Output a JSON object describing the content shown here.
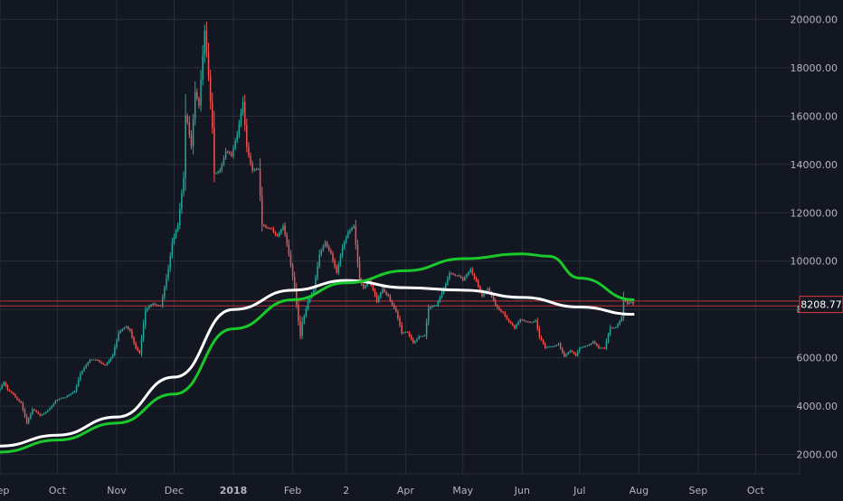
{
  "colors": {
    "background": "#131722",
    "grid": "#2a2e39",
    "axis_text": "#b2b5be",
    "up_candle": "#26a69a",
    "down_candle": "#ef5350",
    "ma_white": "#ffffff",
    "ma_green": "#19c82a",
    "price_line": "#e0393e",
    "price_tag_bg": "#131722",
    "price_tag_border": "#e0393e"
  },
  "price_tag": "8208.77",
  "chart_data": {
    "type": "candlestick",
    "title": "",
    "xlabel": "",
    "ylabel": "",
    "x_range": [
      "2017-09-01",
      "2018-10-24"
    ],
    "ylim": [
      1200,
      20800
    ],
    "grid": true,
    "y_ticks": [
      2000,
      4000,
      6000,
      8000,
      10000,
      12000,
      14000,
      16000,
      18000,
      20000
    ],
    "y_tick_labels": [
      "2000.00",
      "4000.00",
      "6000.00",
      "8000.00",
      "10000.00",
      "12000.00",
      "14000.00",
      "16000.00",
      "18000.00",
      "20000.00"
    ],
    "x_ticks": [
      {
        "date": "2017-09-01",
        "label": "Sep"
      },
      {
        "date": "2017-10-01",
        "label": "Oct"
      },
      {
        "date": "2017-11-01",
        "label": "Nov"
      },
      {
        "date": "2017-12-01",
        "label": "Dec"
      },
      {
        "date": "2018-01-01",
        "label": "2018"
      },
      {
        "date": "2018-02-01",
        "label": "Feb"
      },
      {
        "date": "2018-03-01",
        "label": "2"
      },
      {
        "date": "2018-04-01",
        "label": "Apr"
      },
      {
        "date": "2018-05-01",
        "label": "May"
      },
      {
        "date": "2018-06-01",
        "label": "Jun"
      },
      {
        "date": "2018-07-01",
        "label": "Jul"
      },
      {
        "date": "2018-08-01",
        "label": "Aug"
      },
      {
        "date": "2018-09-01",
        "label": "Sep"
      },
      {
        "date": "2018-10-01",
        "label": "Oct"
      }
    ],
    "horizontal_lines": [
      8150,
      8350
    ],
    "close_keypoints": [
      [
        "2017-09-01",
        4700
      ],
      [
        "2017-09-03",
        4900
      ],
      [
        "2017-09-05",
        4600
      ],
      [
        "2017-09-08",
        4500
      ],
      [
        "2017-09-12",
        4200
      ],
      [
        "2017-09-14",
        3600
      ],
      [
        "2017-09-15",
        3300
      ],
      [
        "2017-09-18",
        3800
      ],
      [
        "2017-09-22",
        3600
      ],
      [
        "2017-09-26",
        3900
      ],
      [
        "2017-09-30",
        4200
      ],
      [
        "2017-10-05",
        4300
      ],
      [
        "2017-10-10",
        4700
      ],
      [
        "2017-10-13",
        5400
      ],
      [
        "2017-10-18",
        5800
      ],
      [
        "2017-10-22",
        5900
      ],
      [
        "2017-10-26",
        5800
      ],
      [
        "2017-10-30",
        6100
      ],
      [
        "2017-11-02",
        6900
      ],
      [
        "2017-11-06",
        7300
      ],
      [
        "2017-11-08",
        7200
      ],
      [
        "2017-11-11",
        6500
      ],
      [
        "2017-11-13",
        6200
      ],
      [
        "2017-11-16",
        7800
      ],
      [
        "2017-11-20",
        8200
      ],
      [
        "2017-11-24",
        8300
      ],
      [
        "2017-11-28",
        9700
      ],
      [
        "2017-11-30",
        10600
      ],
      [
        "2017-12-03",
        11300
      ],
      [
        "2017-12-06",
        13500
      ],
      [
        "2017-12-07",
        16200
      ],
      [
        "2017-12-08",
        16000
      ],
      [
        "2017-12-10",
        15000
      ],
      [
        "2017-12-12",
        17100
      ],
      [
        "2017-12-14",
        16300
      ],
      [
        "2017-12-17",
        19200
      ],
      [
        "2017-12-19",
        17500
      ],
      [
        "2017-12-21",
        15600
      ],
      [
        "2017-12-22",
        13800
      ],
      [
        "2017-12-25",
        14000
      ],
      [
        "2017-12-28",
        14500
      ],
      [
        "2017-12-31",
        14100
      ],
      [
        "2018-01-03",
        15100
      ],
      [
        "2018-01-06",
        16800
      ],
      [
        "2018-01-08",
        15000
      ],
      [
        "2018-01-11",
        13800
      ],
      [
        "2018-01-14",
        13600
      ],
      [
        "2018-01-16",
        11300
      ],
      [
        "2018-01-18",
        11300
      ],
      [
        "2018-01-21",
        11500
      ],
      [
        "2018-01-24",
        11200
      ],
      [
        "2018-01-27",
        11400
      ],
      [
        "2018-01-30",
        10100
      ],
      [
        "2018-02-02",
        8800
      ],
      [
        "2018-02-05",
        7000
      ],
      [
        "2018-02-06",
        7600
      ],
      [
        "2018-02-09",
        8400
      ],
      [
        "2018-02-12",
        8700
      ],
      [
        "2018-02-15",
        10100
      ],
      [
        "2018-02-18",
        10800
      ],
      [
        "2018-02-21",
        10500
      ],
      [
        "2018-02-24",
        9600
      ],
      [
        "2018-02-27",
        10400
      ],
      [
        "2018-03-02",
        11000
      ],
      [
        "2018-03-05",
        11500
      ],
      [
        "2018-03-08",
        9400
      ],
      [
        "2018-03-10",
        9000
      ],
      [
        "2018-03-13",
        9100
      ],
      [
        "2018-03-17",
        8200
      ],
      [
        "2018-03-20",
        8900
      ],
      [
        "2018-03-23",
        8700
      ],
      [
        "2018-03-27",
        7900
      ],
      [
        "2018-03-30",
        6900
      ],
      [
        "2018-04-02",
        7000
      ],
      [
        "2018-04-05",
        6700
      ],
      [
        "2018-04-08",
        7000
      ],
      [
        "2018-04-11",
        6900
      ],
      [
        "2018-04-13",
        7900
      ],
      [
        "2018-04-17",
        8100
      ],
      [
        "2018-04-20",
        8800
      ],
      [
        "2018-04-24",
        9600
      ],
      [
        "2018-04-27",
        9300
      ],
      [
        "2018-05-01",
        9100
      ],
      [
        "2018-05-05",
        9800
      ],
      [
        "2018-05-08",
        9300
      ],
      [
        "2018-05-11",
        8500
      ],
      [
        "2018-05-14",
        8700
      ],
      [
        "2018-05-18",
        8200
      ],
      [
        "2018-05-22",
        8000
      ],
      [
        "2018-05-25",
        7500
      ],
      [
        "2018-05-28",
        7100
      ],
      [
        "2018-05-31",
        7500
      ],
      [
        "2018-06-04",
        7600
      ],
      [
        "2018-06-08",
        7600
      ],
      [
        "2018-06-10",
        6800
      ],
      [
        "2018-06-13",
        6300
      ],
      [
        "2018-06-17",
        6500
      ],
      [
        "2018-06-20",
        6700
      ],
      [
        "2018-06-23",
        6100
      ],
      [
        "2018-06-26",
        6200
      ],
      [
        "2018-06-29",
        6000
      ],
      [
        "2018-07-01",
        6400
      ],
      [
        "2018-07-04",
        6600
      ],
      [
        "2018-07-08",
        6700
      ],
      [
        "2018-07-11",
        6300
      ],
      [
        "2018-07-14",
        6300
      ],
      [
        "2018-07-17",
        7300
      ],
      [
        "2018-07-20",
        7400
      ],
      [
        "2018-07-23",
        7700
      ],
      [
        "2018-07-24",
        8400
      ],
      [
        "2018-07-26",
        8100
      ],
      [
        "2018-07-29",
        8208.77
      ]
    ],
    "series": [
      {
        "type": "line",
        "color": "#ffffff",
        "values": [
          [
            "2017-09-01",
            2350
          ],
          [
            "2017-10-01",
            2800
          ],
          [
            "2017-11-01",
            3550
          ],
          [
            "2017-12-01",
            5200
          ],
          [
            "2018-01-01",
            8000
          ],
          [
            "2018-02-01",
            8800
          ],
          [
            "2018-03-01",
            9200
          ],
          [
            "2018-04-01",
            8900
          ],
          [
            "2018-05-01",
            8800
          ],
          [
            "2018-06-01",
            8500
          ],
          [
            "2018-07-01",
            8100
          ],
          [
            "2018-07-29",
            7800
          ]
        ]
      },
      {
        "type": "line",
        "color": "#19c82a",
        "values": [
          [
            "2017-09-01",
            2100
          ],
          [
            "2017-10-01",
            2600
          ],
          [
            "2017-11-01",
            3300
          ],
          [
            "2017-12-01",
            4500
          ],
          [
            "2018-01-01",
            7200
          ],
          [
            "2018-02-01",
            8400
          ],
          [
            "2018-03-01",
            9100
          ],
          [
            "2018-04-01",
            9600
          ],
          [
            "2018-05-01",
            10100
          ],
          [
            "2018-06-01",
            10300
          ],
          [
            "2018-06-15",
            10200
          ],
          [
            "2018-07-01",
            9300
          ],
          [
            "2018-07-29",
            8400
          ]
        ]
      }
    ]
  }
}
